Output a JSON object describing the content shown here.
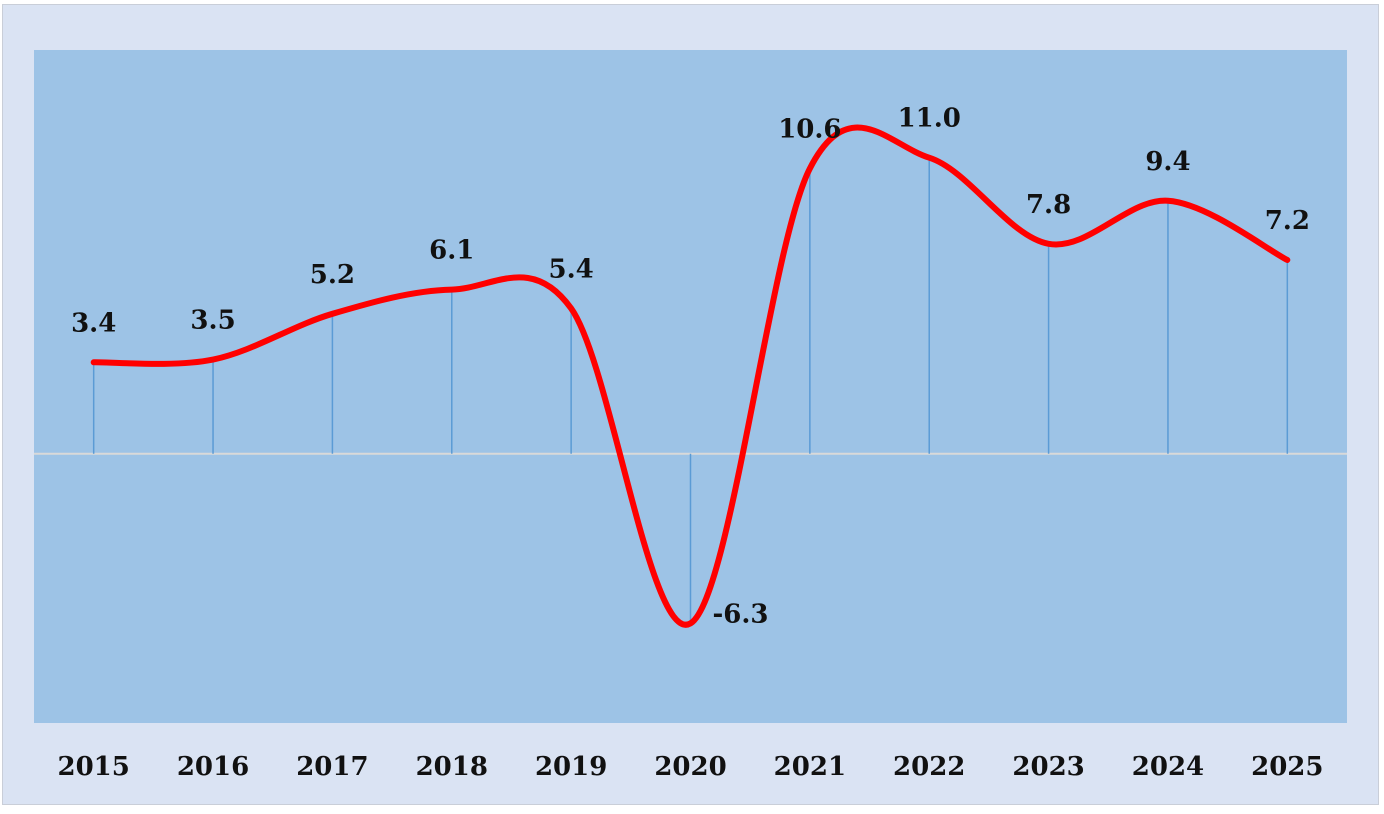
{
  "chart_data": {
    "type": "line",
    "title": "",
    "xlabel": "",
    "ylabel": "",
    "categories": [
      "2015",
      "2016",
      "2017",
      "2018",
      "2019",
      "2020",
      "2021",
      "2022",
      "2023",
      "2024",
      "2025"
    ],
    "values": [
      3.4,
      3.5,
      5.2,
      6.1,
      5.4,
      -6.3,
      10.6,
      11.0,
      7.8,
      9.4,
      7.2
    ],
    "value_labels": [
      "3.4",
      "3.5",
      "5.2",
      "6.1",
      "5.4",
      "-6.3",
      "10.6",
      "11.0",
      "7.8",
      "9.4",
      "7.2"
    ],
    "ylim": [
      -10,
      15
    ],
    "smooth": true,
    "drop_lines": true,
    "grid": false,
    "legend": "none",
    "colors": {
      "line": "#ff0000",
      "plot_bg": "#9dc3e6",
      "outer_bg": "#dae3f3",
      "drop_line": "#5b9bd5",
      "zero_line": "#d9d9d9"
    }
  }
}
